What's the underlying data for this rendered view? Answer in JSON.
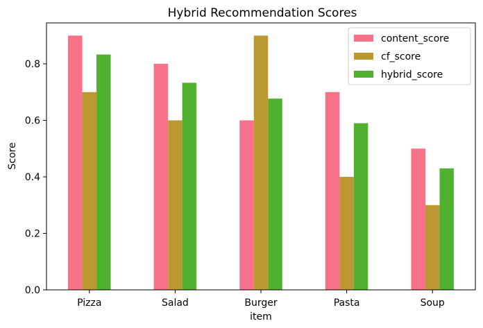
{
  "chart_data": {
    "type": "bar",
    "title": "Hybrid Recommendation Scores",
    "xlabel": "item",
    "ylabel": "Score",
    "categories": [
      "Pizza",
      "Salad",
      "Burger",
      "Pasta",
      "Soup"
    ],
    "series": [
      {
        "name": "content_score",
        "color": "#f77189",
        "values": [
          0.9,
          0.8,
          0.6,
          0.7,
          0.5
        ]
      },
      {
        "name": "cf_score",
        "color": "#bb9832",
        "values": [
          0.7,
          0.6,
          0.9,
          0.4,
          0.3
        ]
      },
      {
        "name": "hybrid_score",
        "color": "#50b131",
        "values": [
          0.833,
          0.733,
          0.677,
          0.59,
          0.43
        ]
      }
    ],
    "ylim": [
      0,
      0.945
    ],
    "yticks": [
      "0.0",
      "0.2",
      "0.4",
      "0.6",
      "0.8"
    ],
    "grid": false,
    "legend_position": "top-right"
  }
}
